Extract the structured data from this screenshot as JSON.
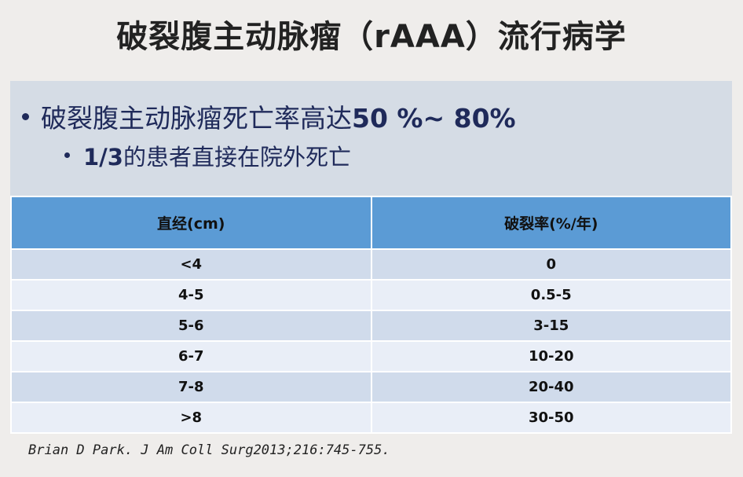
{
  "title": "破裂腹主动脉瘤（rAAA）流行病学",
  "bullets": [
    {
      "text": "破裂腹主动脉瘤死亡率高达",
      "emphasis": "50 %~ 80%"
    },
    {
      "emphasis": "1/3",
      "text": "的患者直接在院外死亡"
    }
  ],
  "table": {
    "header": [
      "直经(cm)",
      "破裂率(%/年)"
    ],
    "rows": [
      [
        "<4",
        "0"
      ],
      [
        "4-5",
        "0.5-5"
      ],
      [
        "5-6",
        "3-15"
      ],
      [
        "6-7",
        "10-20"
      ],
      [
        "7-8",
        "20-40"
      ],
      [
        ">8",
        "30-50"
      ]
    ]
  },
  "citation": "Brian D Park. J Am Coll Surg2013;216:745-755."
}
